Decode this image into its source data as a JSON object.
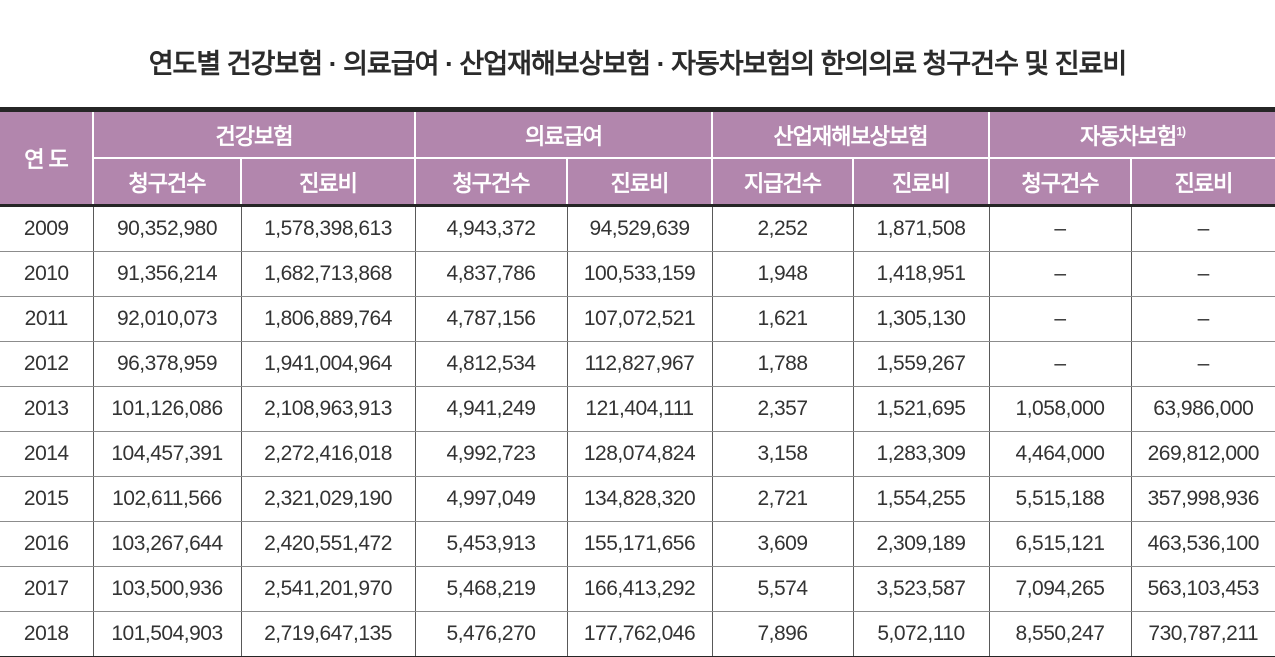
{
  "title": "연도별 건강보험 · 의료급여 · 산업재해보상보험 · 자동차보험의 한의의료 청구건수 및 진료비",
  "colors": {
    "header_bg": "#b286ad",
    "header_text": "#ffffff",
    "outer_border": "#262626",
    "grid_vertical": "#595959",
    "grid_horizontal": "#8c8c8c",
    "body_text": "#333333",
    "title_text": "#2b2b2b"
  },
  "table": {
    "year_header": "연 도",
    "groups": [
      {
        "label": "건강보험",
        "sup": "",
        "cols": [
          "청구건수",
          "진료비"
        ]
      },
      {
        "label": "의료급여",
        "sup": "",
        "cols": [
          "청구건수",
          "진료비"
        ]
      },
      {
        "label": "산업재해보상보험",
        "sup": "",
        "cols": [
          "지급건수",
          "진료비"
        ]
      },
      {
        "label": "자동차보험",
        "sup": "1)",
        "cols": [
          "청구건수",
          "진료비"
        ]
      }
    ],
    "rows": [
      {
        "year": "2009",
        "values": [
          "90,352,980",
          "1,578,398,613",
          "4,943,372",
          "94,529,639",
          "2,252",
          "1,871,508",
          "–",
          "–"
        ]
      },
      {
        "year": "2010",
        "values": [
          "91,356,214",
          "1,682,713,868",
          "4,837,786",
          "100,533,159",
          "1,948",
          "1,418,951",
          "–",
          "–"
        ]
      },
      {
        "year": "2011",
        "values": [
          "92,010,073",
          "1,806,889,764",
          "4,787,156",
          "107,072,521",
          "1,621",
          "1,305,130",
          "–",
          "–"
        ]
      },
      {
        "year": "2012",
        "values": [
          "96,378,959",
          "1,941,004,964",
          "4,812,534",
          "112,827,967",
          "1,788",
          "1,559,267",
          "–",
          "–"
        ]
      },
      {
        "year": "2013",
        "values": [
          "101,126,086",
          "2,108,963,913",
          "4,941,249",
          "121,404,111",
          "2,357",
          "1,521,695",
          "1,058,000",
          "63,986,000"
        ]
      },
      {
        "year": "2014",
        "values": [
          "104,457,391",
          "2,272,416,018",
          "4,992,723",
          "128,074,824",
          "3,158",
          "1,283,309",
          "4,464,000",
          "269,812,000"
        ]
      },
      {
        "year": "2015",
        "values": [
          "102,611,566",
          "2,321,029,190",
          "4,997,049",
          "134,828,320",
          "2,721",
          "1,554,255",
          "5,515,188",
          "357,998,936"
        ]
      },
      {
        "year": "2016",
        "values": [
          "103,267,644",
          "2,420,551,472",
          "5,453,913",
          "155,171,656",
          "3,609",
          "2,309,189",
          "6,515,121",
          "463,536,100"
        ]
      },
      {
        "year": "2017",
        "values": [
          "103,500,936",
          "2,541,201,970",
          "5,468,219",
          "166,413,292",
          "5,574",
          "3,523,587",
          "7,094,265",
          "563,103,453"
        ]
      },
      {
        "year": "2018",
        "values": [
          "101,504,903",
          "2,719,647,135",
          "5,476,270",
          "177,762,046",
          "7,896",
          "5,072,110",
          "8,550,247",
          "730,787,211"
        ]
      }
    ]
  }
}
